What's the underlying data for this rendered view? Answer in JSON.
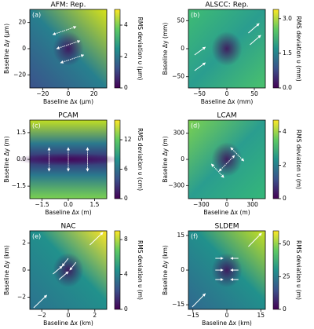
{
  "chart_data": [
    {
      "type": "heatmap",
      "title": "AFM: Rep.",
      "panel_label": "(a)",
      "xlabel": "Baseline Δx (μm)",
      "ylabel": "Baseline Δy (μm)",
      "colorbar_label": "RMS deviation υ (μm)",
      "xlim": [
        -30,
        30
      ],
      "ylim": [
        -30,
        30
      ],
      "xticks": [
        {
          "value": -20,
          "label": "−20"
        },
        0,
        20
      ],
      "yticks": [
        {
          "value": -20,
          "label": "−20"
        },
        0,
        20
      ],
      "clim": [
        0,
        5
      ],
      "cticks": [
        0,
        2,
        4
      ],
      "colormap": "viridis"
    },
    {
      "type": "heatmap",
      "title": "ALSCC: Rep.",
      "panel_label": "(b)",
      "xlabel": "Baseline Δx (mm)",
      "ylabel": "Baseline Δy (mm)",
      "colorbar_label": "RMS deviation υ (mm)",
      "xlim": [
        -70,
        70
      ],
      "ylim": [
        -70,
        70
      ],
      "xticks": [
        {
          "value": -50,
          "label": "−50"
        },
        0,
        50
      ],
      "yticks": [
        {
          "value": -50,
          "label": "−50"
        },
        0,
        50
      ],
      "clim": [
        0,
        3.4
      ],
      "cticks": [
        {
          "value": 0,
          "label": "0.0"
        },
        1.5,
        {
          "value": 3,
          "label": "3.0"
        }
      ],
      "colormap": "viridis"
    },
    {
      "type": "heatmap",
      "title": "PCAM",
      "panel_label": "(c)",
      "xlabel": "Baseline Δx (m)",
      "ylabel": "Baseline Δy (m)",
      "colorbar_label": "RMS deviation υ (cm)",
      "xlim": [
        -2.2,
        2.2
      ],
      "ylim": [
        -2.2,
        2.2
      ],
      "xticks": [
        {
          "value": -1.5,
          "label": "−1.5"
        },
        {
          "value": 0,
          "label": "0.0"
        },
        1.5
      ],
      "yticks": [
        {
          "value": -1.5,
          "label": "−1.5"
        },
        {
          "value": 0,
          "label": "0.0"
        },
        1.5
      ],
      "clim": [
        0,
        16
      ],
      "cticks": [
        0,
        6,
        12
      ],
      "colormap": "viridis"
    },
    {
      "type": "heatmap",
      "title": "LCAM",
      "panel_label": "(d)",
      "xlabel": "Baseline Δx (m)",
      "ylabel": "Baseline Δy (m)",
      "colorbar_label": "RMS deviation υ (m)",
      "xlim": [
        -450,
        450
      ],
      "ylim": [
        -450,
        450
      ],
      "xticks": [
        {
          "value": -300,
          "label": "−300"
        },
        0,
        300
      ],
      "yticks": [
        {
          "value": -300,
          "label": "−300"
        },
        0,
        300
      ],
      "clim": [
        0,
        4.7
      ],
      "cticks": [
        0,
        2,
        4
      ],
      "colormap": "viridis"
    },
    {
      "type": "heatmap",
      "title": "NAC",
      "panel_label": "(e)",
      "xlabel": "Baseline Δx (km)",
      "ylabel": "Baseline Δy (km)",
      "colorbar_label": "RMS deviation υ (m)",
      "xlim": [
        -2.9,
        2.9
      ],
      "ylim": [
        -2.9,
        2.9
      ],
      "xticks": [
        {
          "value": -2,
          "label": "−2"
        },
        0,
        2
      ],
      "yticks": [
        {
          "value": -2,
          "label": "−2"
        },
        0,
        2
      ],
      "clim": [
        0,
        9
      ],
      "cticks": [
        0,
        4,
        8
      ],
      "colormap": "viridis"
    },
    {
      "type": "heatmap",
      "title": "SLDEM",
      "panel_label": "(f)",
      "xlabel": "Baseline Δx (km)",
      "ylabel": "Baseline Δy (km)",
      "colorbar_label": "RMS deviation υ (m)",
      "xlim": [
        -17,
        17
      ],
      "ylim": [
        -17,
        17
      ],
      "xticks": [
        {
          "value": -15,
          "label": "−15"
        },
        0,
        15
      ],
      "yticks": [
        {
          "value": -15,
          "label": "−15"
        },
        0,
        15
      ],
      "clim": [
        0,
        60
      ],
      "cticks": [
        0,
        25,
        50
      ],
      "colormap": "viridis"
    }
  ]
}
